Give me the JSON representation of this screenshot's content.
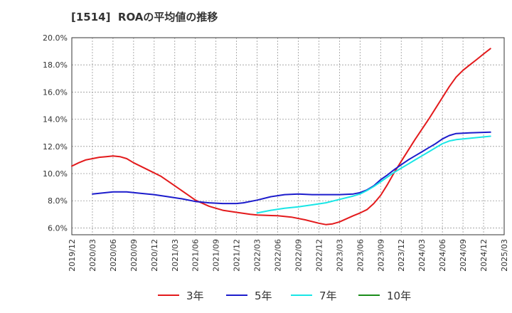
{
  "chart_data": {
    "type": "line",
    "title": "[1514]  ROAの平均値の推移",
    "xlabel": "",
    "ylabel": "",
    "x_ticks": [
      "2019/12",
      "2020/03",
      "2020/06",
      "2020/09",
      "2020/12",
      "2021/03",
      "2021/06",
      "2021/09",
      "2021/12",
      "2022/03",
      "2022/06",
      "2022/09",
      "2022/12",
      "2023/03",
      "2023/06",
      "2023/09",
      "2023/12",
      "2024/03",
      "2024/06",
      "2024/09",
      "2024/12",
      "2025/03"
    ],
    "y_ticks": [
      "6.0%",
      "8.0%",
      "10.0%",
      "12.0%",
      "14.0%",
      "16.0%",
      "18.0%",
      "20.0%"
    ],
    "ylim": [
      5.5,
      20.0
    ],
    "grid": true,
    "legend_position": "bottom",
    "series": [
      {
        "name": "3年",
        "color": "#e31a1c",
        "points": [
          [
            "2019/12",
            10.55
          ],
          [
            "2020/01",
            10.8
          ],
          [
            "2020/02",
            11.0
          ],
          [
            "2020/03",
            11.1
          ],
          [
            "2020/04",
            11.2
          ],
          [
            "2020/05",
            11.25
          ],
          [
            "2020/06",
            11.3
          ],
          [
            "2020/07",
            11.25
          ],
          [
            "2020/08",
            11.1
          ],
          [
            "2020/09",
            10.8
          ],
          [
            "2020/11",
            10.3
          ],
          [
            "2021/01",
            9.8
          ],
          [
            "2021/03",
            9.1
          ],
          [
            "2021/05",
            8.4
          ],
          [
            "2021/06",
            8.05
          ],
          [
            "2021/08",
            7.6
          ],
          [
            "2021/10",
            7.3
          ],
          [
            "2021/12",
            7.15
          ],
          [
            "2022/02",
            7.0
          ],
          [
            "2022/03",
            6.95
          ],
          [
            "2022/06",
            6.9
          ],
          [
            "2022/08",
            6.8
          ],
          [
            "2022/10",
            6.6
          ],
          [
            "2022/12",
            6.35
          ],
          [
            "2023/01",
            6.25
          ],
          [
            "2023/02",
            6.3
          ],
          [
            "2023/03",
            6.45
          ],
          [
            "2023/05",
            6.9
          ],
          [
            "2023/06",
            7.1
          ],
          [
            "2023/07",
            7.35
          ],
          [
            "2023/08",
            7.8
          ],
          [
            "2023/09",
            8.4
          ],
          [
            "2023/10",
            9.2
          ],
          [
            "2023/11",
            10.1
          ],
          [
            "2023/12",
            10.9
          ],
          [
            "2024/02",
            12.5
          ],
          [
            "2024/04",
            14.0
          ],
          [
            "2024/05",
            14.8
          ],
          [
            "2024/06",
            15.6
          ],
          [
            "2024/07",
            16.4
          ],
          [
            "2024/08",
            17.1
          ],
          [
            "2024/09",
            17.6
          ],
          [
            "2024/10",
            18.0
          ],
          [
            "2024/11",
            18.4
          ],
          [
            "2024/12",
            18.8
          ],
          [
            "2025/01",
            19.2
          ]
        ]
      },
      {
        "name": "5年",
        "color": "#1c1ccc",
        "points": [
          [
            "2020/03",
            8.5
          ],
          [
            "2020/05",
            8.6
          ],
          [
            "2020/06",
            8.65
          ],
          [
            "2020/08",
            8.65
          ],
          [
            "2020/10",
            8.55
          ],
          [
            "2020/12",
            8.45
          ],
          [
            "2021/02",
            8.3
          ],
          [
            "2021/04",
            8.15
          ],
          [
            "2021/06",
            7.95
          ],
          [
            "2021/08",
            7.85
          ],
          [
            "2021/10",
            7.8
          ],
          [
            "2021/12",
            7.8
          ],
          [
            "2022/01",
            7.85
          ],
          [
            "2022/03",
            8.05
          ],
          [
            "2022/05",
            8.3
          ],
          [
            "2022/07",
            8.45
          ],
          [
            "2022/09",
            8.5
          ],
          [
            "2022/11",
            8.45
          ],
          [
            "2023/01",
            8.45
          ],
          [
            "2023/03",
            8.45
          ],
          [
            "2023/05",
            8.5
          ],
          [
            "2023/06",
            8.6
          ],
          [
            "2023/07",
            8.8
          ],
          [
            "2023/08",
            9.1
          ],
          [
            "2023/09",
            9.55
          ],
          [
            "2023/10",
            9.9
          ],
          [
            "2023/11",
            10.3
          ],
          [
            "2023/12",
            10.65
          ],
          [
            "2024/01",
            11.0
          ],
          [
            "2024/02",
            11.3
          ],
          [
            "2024/03",
            11.6
          ],
          [
            "2024/04",
            11.9
          ],
          [
            "2024/05",
            12.2
          ],
          [
            "2024/06",
            12.55
          ],
          [
            "2024/07",
            12.8
          ],
          [
            "2024/08",
            12.95
          ],
          [
            "2024/10",
            13.0
          ],
          [
            "2025/01",
            13.05
          ]
        ]
      },
      {
        "name": "7年",
        "color": "#19e6e6",
        "points": [
          [
            "2022/03",
            7.1
          ],
          [
            "2022/05",
            7.3
          ],
          [
            "2022/07",
            7.45
          ],
          [
            "2022/09",
            7.55
          ],
          [
            "2022/11",
            7.7
          ],
          [
            "2023/01",
            7.85
          ],
          [
            "2023/03",
            8.1
          ],
          [
            "2023/05",
            8.35
          ],
          [
            "2023/06",
            8.5
          ],
          [
            "2023/07",
            8.75
          ],
          [
            "2023/08",
            9.05
          ],
          [
            "2023/09",
            9.4
          ],
          [
            "2023/10",
            9.75
          ],
          [
            "2023/11",
            10.1
          ],
          [
            "2023/12",
            10.4
          ],
          [
            "2024/01",
            10.7
          ],
          [
            "2024/02",
            11.0
          ],
          [
            "2024/03",
            11.3
          ],
          [
            "2024/04",
            11.6
          ],
          [
            "2024/05",
            11.9
          ],
          [
            "2024/06",
            12.2
          ],
          [
            "2024/07",
            12.4
          ],
          [
            "2024/08",
            12.5
          ],
          [
            "2024/10",
            12.6
          ],
          [
            "2025/01",
            12.75
          ]
        ]
      },
      {
        "name": "10年",
        "color": "#1a8c1a",
        "points": []
      }
    ]
  }
}
